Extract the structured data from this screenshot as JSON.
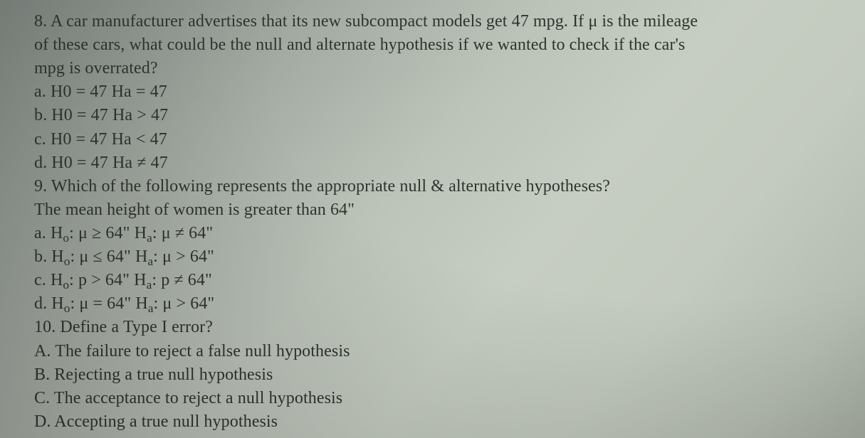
{
  "q8": {
    "l1": "8. A car manufacturer advertises that its new subcompact models get 47 mpg. If μ is the mileage",
    "l2": "of these cars, what could be the null and alternate hypothesis if we wanted to check if the car's",
    "l3": "mpg is overrated?",
    "a": "a. H0 = 47 Ha = 47",
    "b": "b. H0 = 47 Ha > 47",
    "c": "c. H0 = 47 Ha < 47",
    "d": "d. H0 = 47 Ha ≠ 47"
  },
  "q9": {
    "prompt": "9. Which of the following represents the appropriate null & alternative hypotheses?",
    "context": "The mean height of women is greater than 64\"",
    "a_pre": "a. H",
    "a_mid1": ": μ ≥ 64\" H",
    "a_mid2": ": μ ≠ 64\"",
    "b_pre": "b. H",
    "b_mid1": ": μ ≤ 64\" H",
    "b_mid2": ": μ > 64\"",
    "c_pre": "c. H",
    "c_mid1": ": p > 64\" H",
    "c_mid2": ": p ≠ 64\"",
    "d_pre": "d. H",
    "d_mid1": ": μ = 64\" H",
    "d_mid2": ": μ > 64\"",
    "sub0": "o",
    "suba": "a"
  },
  "q10": {
    "prompt": "10. Define a Type I error?",
    "A": "A. The failure to reject a false null hypothesis",
    "B": "B. Rejecting a true null hypothesis",
    "C": "C. The acceptance to reject a null hypothesis",
    "D": "D. Accepting a true null hypothesis"
  }
}
